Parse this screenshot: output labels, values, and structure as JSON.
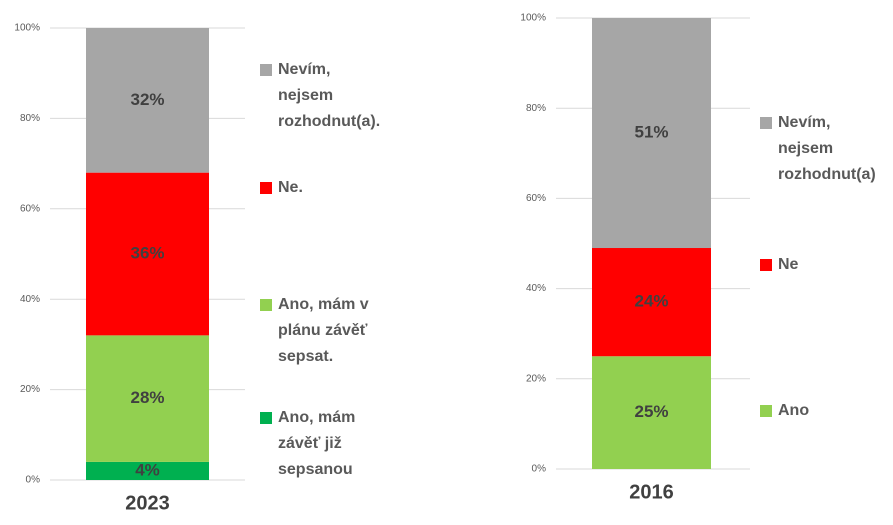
{
  "chart_data": [
    {
      "type": "stacked_bar",
      "categories": [
        "2023"
      ],
      "ylim": [
        0,
        100
      ],
      "yticks": [
        {
          "value": 0,
          "label": "0%"
        },
        {
          "value": 20,
          "label": "20%"
        },
        {
          "value": 40,
          "label": "40%"
        },
        {
          "value": 60,
          "label": "60%"
        },
        {
          "value": 80,
          "label": "80%"
        },
        {
          "value": 100,
          "label": "100%"
        }
      ],
      "grid": true,
      "series": [
        {
          "name": "Ano, mám závěť již sepsanou",
          "color": "#00b050",
          "values": [
            4
          ],
          "value_labels": [
            "4%"
          ]
        },
        {
          "name": "Ano, mám v plánu závěť sepsat.",
          "color": "#92d050",
          "values": [
            28
          ],
          "value_labels": [
            "28%"
          ]
        },
        {
          "name": "Ne.",
          "color": "#ff0000",
          "values": [
            36
          ],
          "value_labels": [
            "36%"
          ]
        },
        {
          "name": "Nevím, nejsem rozhodnut(a).",
          "color": "#a6a6a6",
          "values": [
            32
          ],
          "value_labels": [
            "32%"
          ]
        }
      ]
    },
    {
      "type": "stacked_bar",
      "categories": [
        "2016"
      ],
      "ylim": [
        0,
        100
      ],
      "yticks": [
        {
          "value": 0,
          "label": "0%"
        },
        {
          "value": 20,
          "label": "20%"
        },
        {
          "value": 40,
          "label": "40%"
        },
        {
          "value": 60,
          "label": "60%"
        },
        {
          "value": 80,
          "label": "80%"
        },
        {
          "value": 100,
          "label": "100%"
        }
      ],
      "grid": true,
      "series": [
        {
          "name": "Ano",
          "color": "#92d050",
          "values": [
            25
          ],
          "value_labels": [
            "25%"
          ]
        },
        {
          "name": "Ne",
          "color": "#ff0000",
          "values": [
            24
          ],
          "value_labels": [
            "24%"
          ]
        },
        {
          "name": "Nevím, nejsem rozhodnut(a)",
          "color": "#a6a6a6",
          "values": [
            51
          ],
          "value_labels": [
            "51%"
          ]
        }
      ]
    }
  ]
}
